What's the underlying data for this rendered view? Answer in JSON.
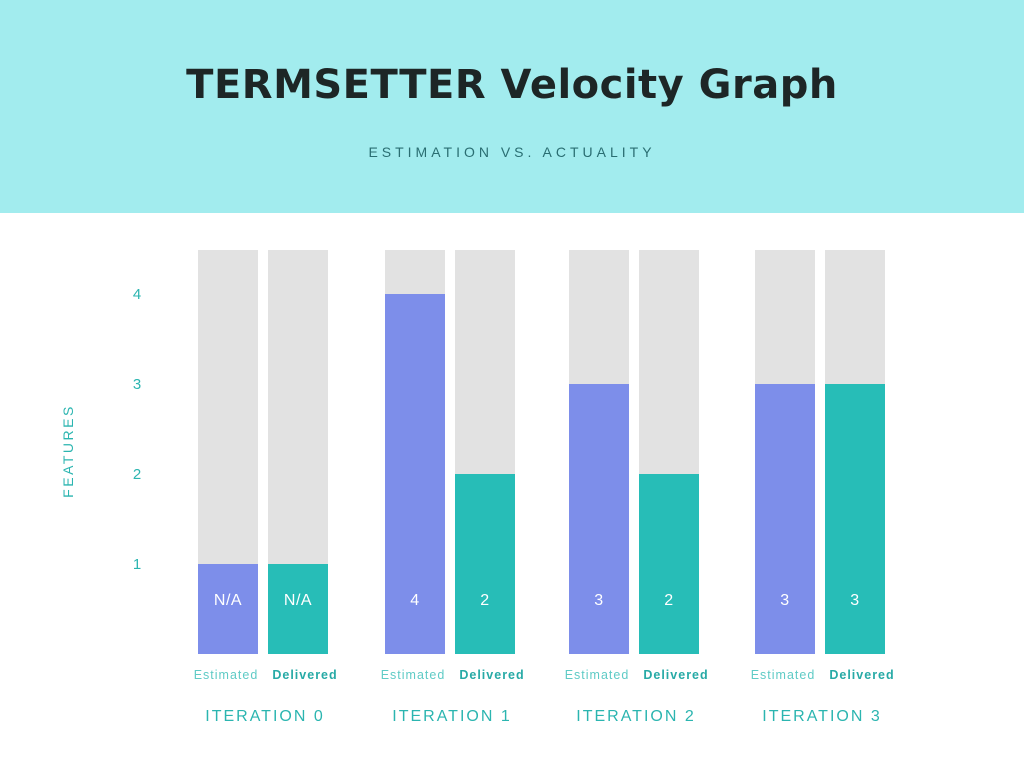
{
  "header": {
    "title": "TERMSETTER Velocity Graph",
    "subtitle": "ESTIMATION VS. ACTUALITY"
  },
  "colors": {
    "header_bg": "#a2ecee",
    "estimated": "#7d8eea",
    "delivered": "#27bdb7",
    "track": "#e2e2e2",
    "axis_text": "#2bb5b0"
  },
  "chart_data": {
    "type": "bar",
    "title": "TERMSETTER Velocity Graph",
    "subtitle": "ESTIMATION VS. ACTUALITY",
    "ylabel": "FEATURES",
    "xlabel": "",
    "ylim": [
      0,
      4.5
    ],
    "yticks": [
      1,
      2,
      3,
      4
    ],
    "categories": [
      "ITERATION 0",
      "ITERATION 1",
      "ITERATION 2",
      "ITERATION 3"
    ],
    "series": [
      {
        "name": "Estimated",
        "values": [
          1,
          4,
          3,
          3
        ],
        "labels": [
          "N/A",
          "4",
          "3",
          "3"
        ],
        "color": "#7d8eea"
      },
      {
        "name": "Delivered",
        "values": [
          1,
          2,
          2,
          3
        ],
        "labels": [
          "N/A",
          "2",
          "2",
          "3"
        ],
        "color": "#27bdb7"
      }
    ],
    "grid": false,
    "legend": "none"
  }
}
